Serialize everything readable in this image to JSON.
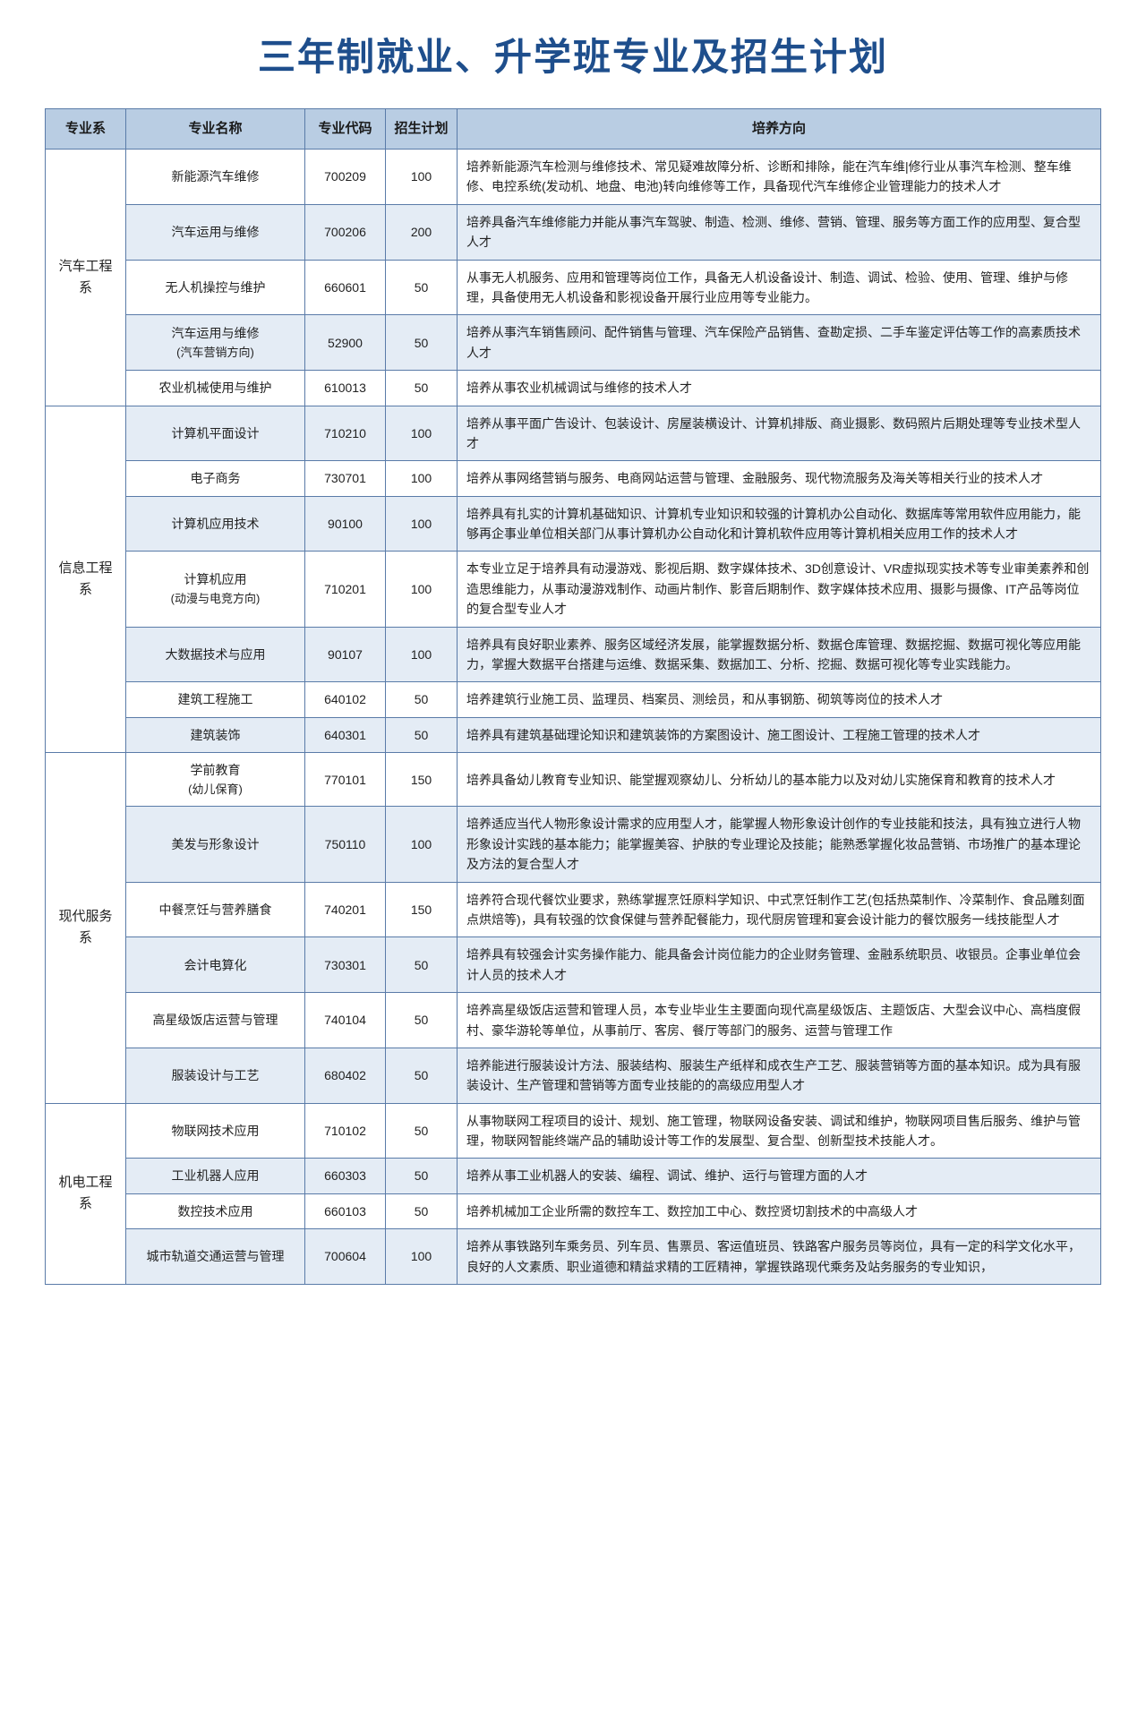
{
  "title": "三年制就业、升学班专业及招生计划",
  "colors": {
    "title": "#1e4e8c",
    "header_bg": "#b9cde3",
    "alt_row_bg": "#e4ecf5",
    "border": "#5a7ba8",
    "text": "#222222"
  },
  "headers": {
    "dept": "专业系",
    "major": "专业名称",
    "code": "专业代码",
    "plan": "招生计划",
    "dir": "培养方向"
  },
  "depts": [
    {
      "name": "汽车工程系",
      "rows": [
        {
          "major": "新能源汽车维修",
          "code": "700209",
          "plan": "100",
          "dir": "培养新能源汽车检测与维修技术、常见疑难故障分析、诊断和排除，能在汽车维|修行业从事汽车检测、整车维修、电控系统(发动机、地盘、电池)转向维修等工作，具备现代汽车维修企业管理能力的技术人才"
        },
        {
          "major": "汽车运用与维修",
          "code": "700206",
          "plan": "200",
          "dir": "培养具备汽车维修能力并能从事汽车驾驶、制造、检测、维修、营销、管理、服务等方面工作的应用型、复合型人才"
        },
        {
          "major": "无人机操控与维护",
          "code": "660601",
          "plan": "50",
          "dir": "从事无人机服务、应用和管理等岗位工作，具备无人机设备设计、制造、调试、检验、使用、管理、维护与修理，具备使用无人机设备和影视设备开展行业应用等专业能力。"
        },
        {
          "major": "汽车运用与维修",
          "major_sub": "(汽车营销方向)",
          "code": "52900",
          "plan": "50",
          "dir": "培养从事汽车销售顾问、配件销售与管理、汽车保险产品销售、查勘定损、二手车鉴定评估等工作的高素质技术人才"
        },
        {
          "major": "农业机械使用与维护",
          "code": "610013",
          "plan": "50",
          "dir": "培养从事农业机械调试与维修的技术人才"
        }
      ]
    },
    {
      "name": "信息工程系",
      "rows": [
        {
          "major": "计算机平面设计",
          "code": "710210",
          "plan": "100",
          "dir": "培养从事平面广告设计、包装设计、房屋装横设计、计算机排版、商业摄影、数码照片后期处理等专业技术型人才"
        },
        {
          "major": "电子商务",
          "code": "730701",
          "plan": "100",
          "dir": "培养从事网络营销与服务、电商网站运营与管理、金融服务、现代物流服务及海关等相关行业的技术人才"
        },
        {
          "major": "计算机应用技术",
          "code": "90100",
          "plan": "100",
          "dir": "培养具有扎实的计算机基础知识、计算机专业知识和较强的计算机办公自动化、数据库等常用软件应用能力，能够再企事业单位相关部门从事计算机办公自动化和计算机软件应用等计算机相关应用工作的技术人才"
        },
        {
          "major": "计算机应用",
          "major_sub": "(动漫与电竞方向)",
          "code": "710201",
          "plan": "100",
          "dir": "本专业立足于培养具有动漫游戏、影视后期、数字媒体技术、3D创意设计、VR虚拟现实技术等专业审美素养和创造思维能力，从事动漫游戏制作、动画片制作、影音后期制作、数字媒体技术应用、摄影与摄像、IT产品等岗位的复合型专业人才"
        },
        {
          "major": "大数据技术与应用",
          "code": "90107",
          "plan": "100",
          "dir": "培养具有良好职业素养、服务区域经济发展，能掌握数据分析、数据仓库管理、数据挖掘、数据可视化等应用能力，掌握大数据平台搭建与运维、数据采集、数据加工、分析、挖掘、数据可视化等专业实践能力。"
        },
        {
          "major": "建筑工程施工",
          "code": "640102",
          "plan": "50",
          "dir": "培养建筑行业施工员、监理员、档案员、测绘员，和从事钢筋、砌筑等岗位的技术人才"
        },
        {
          "major": "建筑装饰",
          "code": "640301",
          "plan": "50",
          "dir": "培养具有建筑基础理论知识和建筑装饰的方案图设计、施工图设计、工程施工管理的技术人才"
        }
      ]
    },
    {
      "name": "现代服务系",
      "rows": [
        {
          "major": "学前教育",
          "major_sub": "(幼儿保育)",
          "code": "770101",
          "plan": "150",
          "dir": "培养具备幼儿教育专业知识、能堂握观察幼儿、分析幼儿的基本能力以及对幼儿实施保育和教育的技术人才"
        },
        {
          "major": "美发与形象设计",
          "code": "750110",
          "plan": "100",
          "dir": "培养适应当代人物形象设计需求的应用型人才，能掌握人物形象设计创作的专业技能和技法，具有独立进行人物形象设计实践的基本能力；能掌握美容、护肤的专业理论及技能；能熟悉掌握化妆品营销、市场推广的基本理论及方法的复合型人才"
        },
        {
          "major": "中餐烹饪与营养膳食",
          "code": "740201",
          "plan": "150",
          "dir": "培养符合现代餐饮业要求，熟练掌握烹饪原料学知识、中式烹饪制作工艺(包括热菜制作、冷菜制作、食品雕刻面点烘焙等)，具有较强的饮食保健与营养配餐能力，现代厨房管理和宴会设计能力的餐饮服务一线技能型人才"
        },
        {
          "major": "会计电算化",
          "code": "730301",
          "plan": "50",
          "dir": "培养具有较强会计实务操作能力、能具备会计岗位能力的企业财务管理、金融系统职员、收银员。企事业单位会计人员的技术人才"
        },
        {
          "major": "高星级饭店运营与管理",
          "code": "740104",
          "plan": "50",
          "dir": "培养高星级饭店运营和管理人员，本专业毕业生主要面向现代高星级饭店、主题饭店、大型会议中心、高档度假村、豪华游轮等单位，从事前厅、客房、餐厅等部门的服务、运营与管理工作"
        },
        {
          "major": "服装设计与工艺",
          "code": "680402",
          "plan": "50",
          "dir": "培养能进行服装设计方法、服装结构、服装生产纸样和成衣生产工艺、服装营销等方面的基本知识。成为具有服装设计、生产管理和营销等方面专业技能的的高级应用型人才"
        }
      ]
    },
    {
      "name": "机电工程系",
      "rows": [
        {
          "major": "物联网技术应用",
          "code": "710102",
          "plan": "50",
          "dir": "从事物联网工程项目的设计、规划、施工管理，物联网设备安装、调试和维护，物联网项目售后服务、维护与管理，物联网智能终端产品的辅助设计等工作的发展型、复合型、创新型技术技能人才。"
        },
        {
          "major": "工业机器人应用",
          "code": "660303",
          "plan": "50",
          "dir": "培养从事工业机器人的安装、编程、调试、维护、运行与管理方面的人才"
        },
        {
          "major": "数控技术应用",
          "code": "660103",
          "plan": "50",
          "dir": "培养机械加工企业所需的数控车工、数控加工中心、数控贤切割技术的中高级人才"
        },
        {
          "major": "城市轨道交通运营与管理",
          "code": "700604",
          "plan": "100",
          "dir": "培养从事铁路列车乘务员、列车员、售票员、客运值班员、铁路客户服务员等岗位，具有一定的科学文化水平，良好的人文素质、职业道德和精益求精的工匠精神，掌握铁路现代乘务及站务服务的专业知识，"
        }
      ]
    }
  ]
}
